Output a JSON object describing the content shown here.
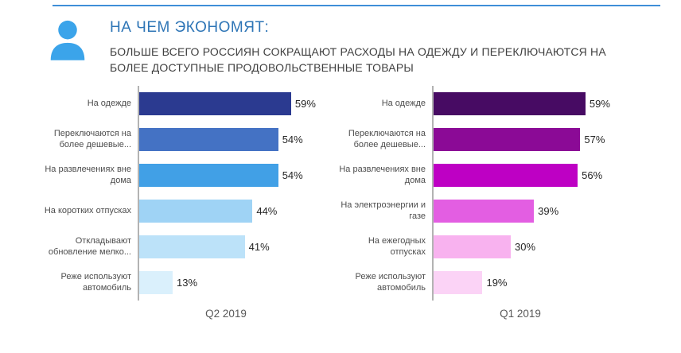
{
  "page": {
    "background": "#ffffff",
    "top_rule_color": "#3E8FD8"
  },
  "header": {
    "icon": "person-avatar-icon",
    "icon_color": "#3BA4EA",
    "title": "НА ЧЕМ ЭКОНОМЯТ:",
    "title_color": "#2E75B6",
    "subtitle": "БОЛЬШЕ ВСЕГО РОССИЯН СОКРАЩАЮТ РАСХОДЫ НА ОДЕЖДУ И ПЕРЕКЛЮЧАЮТСЯ НА БОЛЕЕ ДОСТУПНЫЕ ПРОДОВОЛЬСТВЕННЫЕ ТОВАРЫ",
    "subtitle_color": "#404040"
  },
  "chart_data": [
    {
      "type": "bar",
      "orientation": "horizontal",
      "xlabel": "Q2 2019",
      "xlim": [
        0,
        68
      ],
      "grid": false,
      "legend": false,
      "categories": [
        "На одежде",
        "Переключаются на более дешевые...",
        "На развлечениях вне дома",
        "На коротких отпусках",
        "Откладывают обновление мелко...",
        "Реже используют автомобиль"
      ],
      "values": [
        59,
        54,
        54,
        44,
        41,
        13
      ],
      "value_labels": [
        "59%",
        "54%",
        "54%",
        "44%",
        "41%",
        "13%"
      ],
      "bar_colors": [
        "#2B3A90",
        "#4472C4",
        "#41A0E6",
        "#9FD3F5",
        "#BCE2F9",
        "#DAF0FC"
      ],
      "axis_color": "#b3b3b3"
    },
    {
      "type": "bar",
      "orientation": "horizontal",
      "xlabel": "Q1 2019",
      "xlim": [
        0,
        68
      ],
      "grid": false,
      "legend": false,
      "categories": [
        "На одежде",
        "Переключаются на более дешевые...",
        "На развлечениях вне дома",
        "На электроэнергии и газе",
        "На ежегодных отпусках",
        "Реже используют автомобиль"
      ],
      "values": [
        59,
        57,
        56,
        39,
        30,
        19
      ],
      "value_labels": [
        "59%",
        "57%",
        "56%",
        "39%",
        "30%",
        "19%"
      ],
      "bar_colors": [
        "#470B63",
        "#8B0A96",
        "#BE00C4",
        "#E35EE2",
        "#F8B2EF",
        "#FBD3F6"
      ],
      "axis_color": "#b3b3b3"
    }
  ]
}
